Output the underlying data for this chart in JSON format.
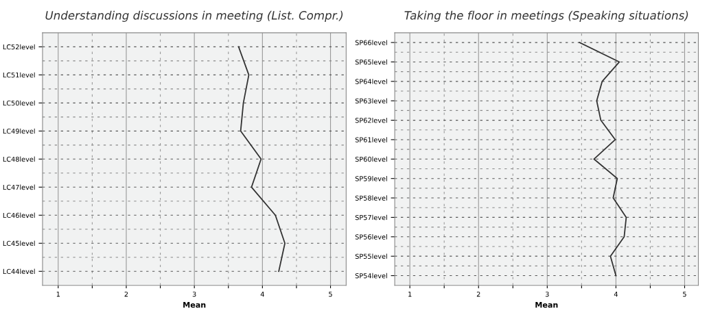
{
  "chart_data": [
    {
      "type": "line",
      "orientation": "horizontal",
      "title": "Understanding discussions in meeting (List. Compr.)",
      "xlabel": "Mean",
      "categories": [
        "LC52level",
        "LC51level",
        "LC50level",
        "LC49level",
        "LC48level",
        "LC47level",
        "LC46level",
        "LC45level",
        "LC44level"
      ],
      "series": [
        {
          "color": "#333333",
          "values": [
            3.65,
            3.8,
            3.72,
            3.68,
            3.98,
            3.84,
            4.19,
            4.33,
            4.24
          ]
        }
      ],
      "xlim": [
        0.77,
        5.23
      ],
      "xticks": [
        1,
        {
          "value": 1.5,
          "label": null
        },
        2,
        {
          "value": 2.5,
          "label": null
        },
        3,
        {
          "value": 3.5,
          "label": null
        },
        4,
        {
          "value": 4.5,
          "label": null
        },
        5
      ],
      "grid": true,
      "marker": "none",
      "line_style": "solid"
    },
    {
      "type": "line",
      "orientation": "horizontal",
      "title": "Taking the floor in meetings (Speaking situations)",
      "xlabel": "Mean",
      "categories": [
        "SP66level",
        "SP65level",
        "SP64level",
        "SP63level",
        "SP62level",
        "SP61level",
        "SP60level",
        "SP59level",
        "SP58level",
        "SP57level",
        "SP56level",
        "SP55level",
        "SP54level"
      ],
      "series": [
        {
          "color": "#333333",
          "values": [
            3.47,
            4.05,
            3.8,
            3.72,
            3.78,
            3.99,
            3.68,
            4.02,
            3.96,
            4.15,
            4.12,
            3.92,
            4.0
          ]
        }
      ],
      "xlim": [
        0.78,
        5.2
      ],
      "xticks": [
        1,
        {
          "value": 1.5,
          "label": null
        },
        2,
        {
          "value": 2.5,
          "label": null
        },
        3,
        {
          "value": 3.5,
          "label": null
        },
        4,
        {
          "value": 4.5,
          "label": null
        },
        5
      ],
      "grid": true,
      "marker": "none",
      "line_style": "solid"
    }
  ]
}
